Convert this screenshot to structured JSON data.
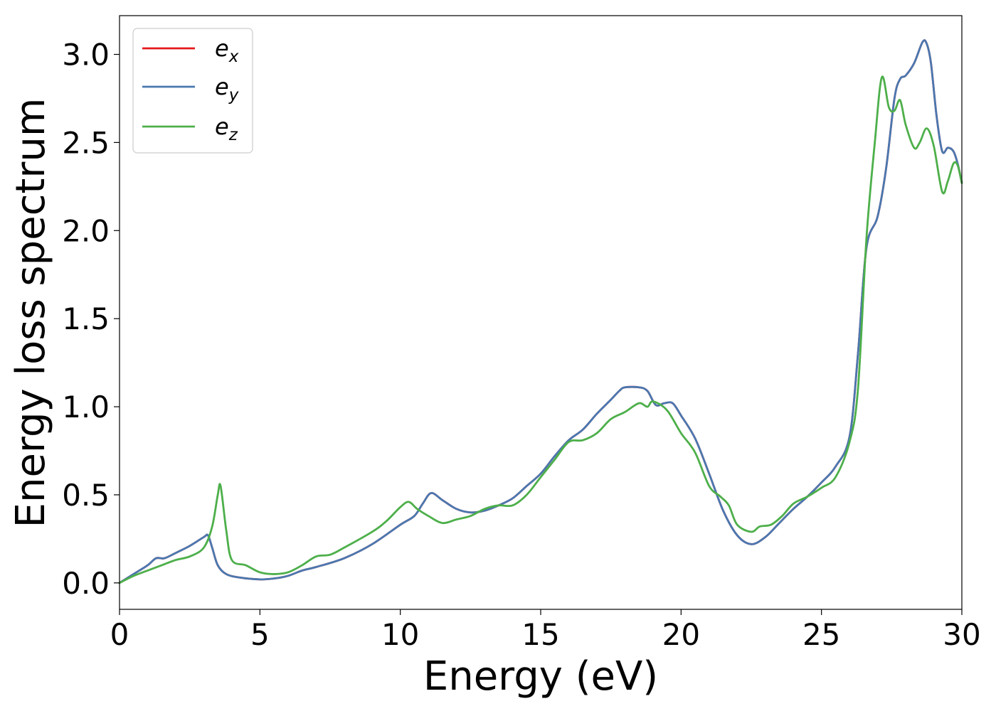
{
  "chart_data": {
    "type": "line",
    "title": "",
    "xlabel": "Energy (eV)",
    "ylabel": "Energy loss spectrum",
    "xlim": [
      0,
      30
    ],
    "ylim": [
      -0.15,
      3.22
    ],
    "xticks": [
      0,
      5,
      10,
      15,
      20,
      25,
      30
    ],
    "xtick_labels": [
      "0",
      "5",
      "10",
      "15",
      "20",
      "25",
      "30"
    ],
    "yticks": [
      0.0,
      0.5,
      1.0,
      1.5,
      2.0,
      2.5,
      3.0
    ],
    "ytick_labels": [
      "0.0",
      "0.5",
      "1.0",
      "1.5",
      "2.0",
      "2.5",
      "3.0"
    ],
    "grid": false,
    "legend_position": "top-left",
    "series": [
      {
        "name": "x",
        "color": "#e41a1c",
        "x": [
          0,
          0.5,
          1.0,
          1.3,
          1.6,
          2.0,
          2.5,
          3.0,
          3.15,
          3.3,
          3.5,
          3.8,
          4.3,
          5.0,
          5.5,
          6.0,
          6.5,
          7.0,
          8.0,
          9.0,
          10.0,
          10.5,
          10.8,
          11.1,
          11.5,
          12.0,
          12.5,
          13.0,
          13.5,
          14.0,
          14.5,
          15.0,
          15.5,
          16.0,
          16.5,
          17.0,
          17.5,
          17.8,
          18.0,
          18.5,
          18.8,
          19.1,
          19.4,
          19.7,
          20.0,
          20.5,
          21.0,
          21.5,
          22.0,
          22.5,
          23.0,
          23.5,
          24.0,
          24.5,
          25.0,
          25.5,
          26.0,
          26.3,
          26.6,
          27.0,
          27.3,
          27.6,
          27.8,
          28.0,
          28.3,
          28.6,
          28.75,
          28.9,
          29.1,
          29.3,
          29.5,
          29.7,
          29.85,
          30.0
        ],
        "y": [
          0.0,
          0.05,
          0.1,
          0.14,
          0.14,
          0.17,
          0.21,
          0.26,
          0.27,
          0.2,
          0.1,
          0.05,
          0.03,
          0.02,
          0.025,
          0.04,
          0.07,
          0.09,
          0.14,
          0.22,
          0.33,
          0.38,
          0.45,
          0.51,
          0.47,
          0.42,
          0.4,
          0.41,
          0.44,
          0.48,
          0.55,
          0.62,
          0.72,
          0.81,
          0.87,
          0.96,
          1.04,
          1.09,
          1.11,
          1.11,
          1.09,
          1.01,
          1.02,
          1.02,
          0.95,
          0.82,
          0.62,
          0.41,
          0.27,
          0.22,
          0.26,
          0.34,
          0.42,
          0.49,
          0.57,
          0.66,
          0.83,
          1.3,
          1.9,
          2.08,
          2.35,
          2.75,
          2.86,
          2.88,
          2.95,
          3.07,
          3.06,
          2.95,
          2.65,
          2.45,
          2.47,
          2.45,
          2.38,
          2.27
        ]
      },
      {
        "name": "y",
        "color": "#4a78b0",
        "x": [
          0,
          0.5,
          1.0,
          1.3,
          1.6,
          2.0,
          2.5,
          3.0,
          3.15,
          3.3,
          3.5,
          3.8,
          4.3,
          5.0,
          5.5,
          6.0,
          6.5,
          7.0,
          8.0,
          9.0,
          10.0,
          10.5,
          10.8,
          11.1,
          11.5,
          12.0,
          12.5,
          13.0,
          13.5,
          14.0,
          14.5,
          15.0,
          15.5,
          16.0,
          16.5,
          17.0,
          17.5,
          17.8,
          18.0,
          18.5,
          18.8,
          19.1,
          19.4,
          19.7,
          20.0,
          20.5,
          21.0,
          21.5,
          22.0,
          22.5,
          23.0,
          23.5,
          24.0,
          24.5,
          25.0,
          25.5,
          26.0,
          26.3,
          26.6,
          27.0,
          27.3,
          27.6,
          27.8,
          28.0,
          28.3,
          28.6,
          28.75,
          28.9,
          29.1,
          29.3,
          29.5,
          29.7,
          29.85,
          30.0
        ],
        "y": [
          0.0,
          0.05,
          0.1,
          0.14,
          0.14,
          0.17,
          0.21,
          0.26,
          0.27,
          0.2,
          0.1,
          0.05,
          0.03,
          0.02,
          0.025,
          0.04,
          0.07,
          0.09,
          0.14,
          0.22,
          0.33,
          0.38,
          0.45,
          0.51,
          0.47,
          0.42,
          0.4,
          0.41,
          0.44,
          0.48,
          0.55,
          0.62,
          0.72,
          0.81,
          0.87,
          0.96,
          1.04,
          1.09,
          1.11,
          1.11,
          1.09,
          1.01,
          1.02,
          1.02,
          0.95,
          0.82,
          0.62,
          0.41,
          0.27,
          0.22,
          0.26,
          0.34,
          0.42,
          0.49,
          0.57,
          0.66,
          0.83,
          1.3,
          1.9,
          2.08,
          2.35,
          2.75,
          2.86,
          2.88,
          2.95,
          3.07,
          3.06,
          2.95,
          2.65,
          2.45,
          2.47,
          2.45,
          2.38,
          2.27
        ]
      },
      {
        "name": "z",
        "color": "#4daf4a",
        "x": [
          0,
          0.5,
          1.0,
          1.5,
          2.0,
          2.5,
          3.0,
          3.3,
          3.5,
          3.6,
          3.8,
          4.0,
          4.5,
          5.0,
          5.5,
          6.0,
          6.5,
          7.0,
          7.5,
          8.0,
          9.0,
          9.5,
          10.0,
          10.3,
          10.6,
          11.0,
          11.5,
          12.0,
          12.5,
          13.0,
          13.5,
          14.0,
          14.5,
          15.0,
          15.5,
          16.0,
          16.5,
          17.0,
          17.5,
          18.0,
          18.5,
          18.8,
          19.0,
          19.5,
          20.0,
          20.5,
          21.0,
          21.4,
          21.7,
          22.0,
          22.5,
          22.8,
          23.2,
          23.6,
          24.0,
          24.5,
          25.0,
          25.5,
          26.0,
          26.3,
          26.6,
          26.9,
          27.15,
          27.4,
          27.6,
          27.8,
          28.0,
          28.3,
          28.5,
          28.75,
          29.0,
          29.3,
          29.5,
          29.7,
          29.85,
          30.0
        ],
        "y": [
          0.0,
          0.04,
          0.07,
          0.1,
          0.13,
          0.15,
          0.2,
          0.32,
          0.5,
          0.55,
          0.3,
          0.13,
          0.1,
          0.06,
          0.05,
          0.06,
          0.1,
          0.15,
          0.16,
          0.2,
          0.29,
          0.35,
          0.43,
          0.46,
          0.42,
          0.38,
          0.34,
          0.36,
          0.38,
          0.42,
          0.44,
          0.44,
          0.5,
          0.6,
          0.7,
          0.8,
          0.81,
          0.85,
          0.93,
          0.97,
          1.02,
          1.0,
          1.03,
          0.98,
          0.85,
          0.74,
          0.55,
          0.49,
          0.44,
          0.33,
          0.29,
          0.32,
          0.33,
          0.38,
          0.45,
          0.49,
          0.54,
          0.6,
          0.8,
          1.1,
          1.95,
          2.5,
          2.87,
          2.7,
          2.68,
          2.74,
          2.6,
          2.47,
          2.5,
          2.58,
          2.48,
          2.22,
          2.28,
          2.38,
          2.37,
          2.27
        ]
      }
    ]
  }
}
